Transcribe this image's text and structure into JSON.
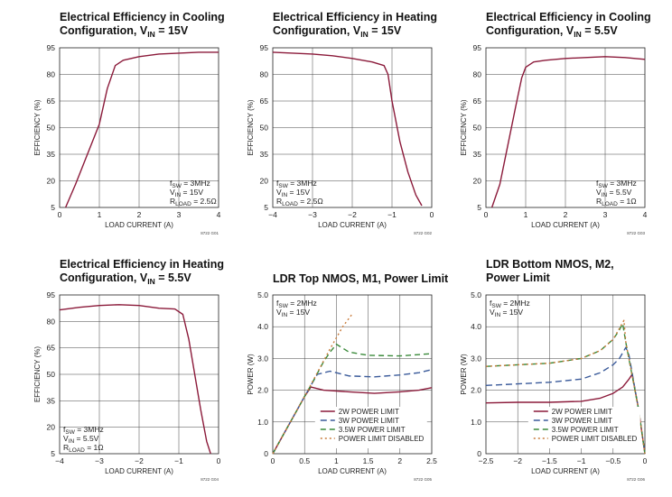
{
  "chart_data": [
    {
      "type": "line",
      "title_line1": "Electrical Efficiency in Cooling",
      "title_line2": "Configuration, V",
      "title_sub": "IN",
      "title_tail": " = 15V",
      "xlabel": "LOAD CURRENT (A)",
      "ylabel": "EFFICIENCY (%)",
      "xlim": [
        0,
        4
      ],
      "ylim": [
        5,
        95
      ],
      "xticks": [
        "0",
        "1",
        "2",
        "3",
        "4"
      ],
      "yticks": [
        "5",
        "20",
        "35",
        "50",
        "65",
        "80",
        "95"
      ],
      "grid": true,
      "annotation": [
        {
          "main": "f",
          "sub": "SW",
          "tail": " = 3MHz"
        },
        {
          "main": "V",
          "sub": "IN",
          "tail": " = 15V"
        },
        {
          "main": "R",
          "sub": "LOAD",
          "tail": " = 2.5Ω"
        }
      ],
      "annotation_pos": "bottom-right",
      "code": "8722 G01",
      "series": [
        {
          "color": "#8b1a3a",
          "dash": "",
          "x": [
            0.15,
            0.4,
            0.7,
            1.0,
            1.2,
            1.4,
            1.6,
            2.0,
            2.5,
            3.0,
            3.5,
            4.0
          ],
          "y": [
            5,
            18,
            35,
            52,
            72,
            85,
            88,
            90,
            91.5,
            92,
            92.5,
            92.5
          ]
        }
      ]
    },
    {
      "type": "line",
      "title_line1": "Electrical Efficiency in Heating",
      "title_line2": "Configuration, V",
      "title_sub": "IN",
      "title_tail": " = 15V",
      "xlabel": "LOAD CURRENT (A)",
      "ylabel": "EFFICIENCY (%)",
      "xlim": [
        -4,
        0
      ],
      "ylim": [
        5,
        95
      ],
      "xticks": [
        "−4",
        "−3",
        "−2",
        "−1",
        "0"
      ],
      "yticks": [
        "5",
        "20",
        "35",
        "50",
        "65",
        "80",
        "95"
      ],
      "grid": true,
      "annotation": [
        {
          "main": "f",
          "sub": "SW",
          "tail": " = 3MHz"
        },
        {
          "main": "V",
          "sub": "IN",
          "tail": " = 15V"
        },
        {
          "main": "R",
          "sub": "LOAD",
          "tail": " = 2.5Ω"
        }
      ],
      "annotation_pos": "bottom-left",
      "code": "8722 G02",
      "series": [
        {
          "color": "#8b1a3a",
          "dash": "",
          "x": [
            -4.0,
            -3.5,
            -3.0,
            -2.5,
            -2.0,
            -1.5,
            -1.2,
            -1.1,
            -1.0,
            -0.8,
            -0.6,
            -0.4,
            -0.25
          ],
          "y": [
            92.5,
            92,
            91.5,
            90.5,
            89,
            87,
            85,
            80,
            65,
            42,
            25,
            12,
            6
          ]
        }
      ]
    },
    {
      "type": "line",
      "title_line1": "Electrical Efficiency in Cooling",
      "title_line2": "Configuration, V",
      "title_sub": "IN",
      "title_tail": " = 5.5V",
      "xlabel": "LOAD CURRENT (A)",
      "ylabel": "EFFICIENCY (%)",
      "xlim": [
        0,
        4
      ],
      "ylim": [
        5,
        95
      ],
      "xticks": [
        "0",
        "1",
        "2",
        "3",
        "4"
      ],
      "yticks": [
        "5",
        "20",
        "35",
        "50",
        "65",
        "80",
        "95"
      ],
      "grid": true,
      "annotation": [
        {
          "main": "f",
          "sub": "SW",
          "tail": " = 3MHz"
        },
        {
          "main": "V",
          "sub": "IN",
          "tail": " = 5.5V"
        },
        {
          "main": "R",
          "sub": "LOAD",
          "tail": " = 1Ω"
        }
      ],
      "annotation_pos": "bottom-right",
      "code": "8722 G03",
      "series": [
        {
          "color": "#8b1a3a",
          "dash": "",
          "x": [
            0.15,
            0.35,
            0.55,
            0.75,
            0.9,
            1.0,
            1.2,
            1.5,
            2.0,
            2.5,
            3.0,
            3.5,
            4.0
          ],
          "y": [
            5,
            18,
            40,
            62,
            78,
            84,
            87,
            88,
            89,
            89.5,
            90,
            89.5,
            88.5
          ]
        }
      ]
    },
    {
      "type": "line",
      "title_line1": "Electrical Efficiency in Heating",
      "title_line2": "Configuration, V",
      "title_sub": "IN",
      "title_tail": " = 5.5V",
      "xlabel": "LOAD CURRENT (A)",
      "ylabel": "EFFICIENCY (%)",
      "xlim": [
        -4,
        0
      ],
      "ylim": [
        5,
        95
      ],
      "xticks": [
        "−4",
        "−3",
        "−2",
        "−1",
        "0"
      ],
      "yticks": [
        "5",
        "20",
        "35",
        "50",
        "65",
        "80",
        "95"
      ],
      "grid": true,
      "annotation": [
        {
          "main": "f",
          "sub": "SW",
          "tail": " = 3MHz"
        },
        {
          "main": "V",
          "sub": "IN",
          "tail": " = 5.5V"
        },
        {
          "main": "R",
          "sub": "LOAD",
          "tail": " = 1Ω"
        }
      ],
      "annotation_pos": "bottom-left",
      "code": "8722 G04",
      "series": [
        {
          "color": "#8b1a3a",
          "dash": "",
          "x": [
            -4.0,
            -3.5,
            -3.0,
            -2.5,
            -2.0,
            -1.5,
            -1.1,
            -0.9,
            -0.75,
            -0.6,
            -0.45,
            -0.3,
            -0.2
          ],
          "y": [
            86.5,
            88,
            89,
            89.5,
            89,
            87.5,
            87,
            84,
            70,
            50,
            30,
            12,
            5
          ]
        }
      ]
    },
    {
      "type": "line",
      "title_line1": "LDR Top NMOS, M1, Power Limit",
      "title_line2": "",
      "title_sub": "",
      "title_tail": "",
      "xlabel": "LOAD CURRENT (A)",
      "ylabel": "POWER (W)",
      "xlim": [
        0,
        2.5
      ],
      "ylim": [
        0,
        5
      ],
      "xticks": [
        "0",
        "0.5",
        "1",
        "1.5",
        "2",
        "2.5"
      ],
      "yticks": [
        "0",
        "1.0",
        "2.0",
        "3.0",
        "4.0",
        "5.0"
      ],
      "grid": true,
      "annotation": [
        {
          "main": "f",
          "sub": "SW",
          "tail": " = 2MHz"
        },
        {
          "main": "V",
          "sub": "IN",
          "tail": " = 15V"
        }
      ],
      "annotation_pos": "top-left",
      "code": "8722 G05",
      "legend": [
        "2W POWER LIMIT",
        "3W POWER LIMIT",
        "3.5W POWER LIMIT",
        "POWER LIMIT DISABLED"
      ],
      "legend_position": "bottom-center",
      "series": [
        {
          "name": "2W POWER LIMIT",
          "color": "#8b1a3a",
          "dash": "",
          "x": [
            0,
            0.5,
            0.6,
            0.8,
            1.2,
            1.6,
            2.0,
            2.3,
            2.5
          ],
          "y": [
            0,
            1.8,
            2.1,
            2.0,
            1.95,
            1.9,
            1.95,
            2.0,
            2.08
          ]
        },
        {
          "name": "3W POWER LIMIT",
          "color": "#3a5a9a",
          "dash": "7,4",
          "x": [
            0,
            0.5,
            0.6,
            0.7,
            0.9,
            1.2,
            1.6,
            2.0,
            2.3,
            2.5
          ],
          "y": [
            0,
            1.8,
            2.15,
            2.5,
            2.6,
            2.45,
            2.42,
            2.48,
            2.55,
            2.65
          ]
        },
        {
          "name": "3.5W POWER LIMIT",
          "color": "#3a8a3a",
          "dash": "6,4",
          "x": [
            0,
            0.5,
            0.6,
            0.8,
            0.9,
            1.0,
            1.2,
            1.5,
            2.0,
            2.5
          ],
          "y": [
            0,
            1.8,
            2.15,
            2.9,
            3.2,
            3.45,
            3.2,
            3.1,
            3.08,
            3.15
          ]
        },
        {
          "name": "POWER LIMIT DISABLED",
          "color": "#c87a3a",
          "dash": "2,3",
          "x": [
            0,
            0.5,
            0.7,
            0.9,
            1.1,
            1.25
          ],
          "y": [
            0,
            1.8,
            2.55,
            3.3,
            4.0,
            4.4
          ]
        }
      ]
    },
    {
      "type": "line",
      "title_line1": "LDR Bottom NMOS, M2,",
      "title_line2": "Power Limit",
      "title_sub": "",
      "title_tail": "",
      "xlabel": "LOAD CURRENT (A)",
      "ylabel": "POWER (W)",
      "xlim": [
        -2.5,
        0
      ],
      "ylim": [
        0,
        5
      ],
      "xticks": [
        "−2.5",
        "−2",
        "−1.5",
        "−1",
        "−0.5",
        "0"
      ],
      "yticks": [
        "0",
        "1.0",
        "2.0",
        "3.0",
        "4.0",
        "5.0"
      ],
      "grid": true,
      "annotation": [
        {
          "main": "f",
          "sub": "SW",
          "tail": " = 2MHz"
        },
        {
          "main": "V",
          "sub": "IN",
          "tail": " = 15V"
        }
      ],
      "annotation_pos": "top-left",
      "code": "8722 G06",
      "legend": [
        "2W POWER LIMIT",
        "3W POWER LIMIT",
        "3.5W POWER LIMIT",
        "POWER LIMIT DISABLED"
      ],
      "legend_position": "bottom-center",
      "series": [
        {
          "name": "2W POWER LIMIT",
          "color": "#8b1a3a",
          "dash": "",
          "x": [
            -2.5,
            -2.0,
            -1.5,
            -1.0,
            -0.7,
            -0.5,
            -0.35,
            -0.25,
            -0.2,
            -0.1,
            0
          ],
          "y": [
            1.6,
            1.62,
            1.62,
            1.65,
            1.75,
            1.9,
            2.1,
            2.35,
            2.5,
            1.4,
            0
          ]
        },
        {
          "name": "3W POWER LIMIT",
          "color": "#3a5a9a",
          "dash": "7,4",
          "x": [
            -2.5,
            -2.0,
            -1.5,
            -1.0,
            -0.7,
            -0.5,
            -0.4,
            -0.3,
            -0.25,
            -0.1,
            0
          ],
          "y": [
            2.15,
            2.2,
            2.25,
            2.35,
            2.55,
            2.8,
            3.0,
            3.35,
            3.1,
            1.4,
            0
          ]
        },
        {
          "name": "3.5W POWER LIMIT",
          "color": "#3a8a3a",
          "dash": "6,4",
          "x": [
            -2.5,
            -2.0,
            -1.5,
            -1.0,
            -0.7,
            -0.5,
            -0.4,
            -0.35,
            -0.3,
            -0.1,
            0
          ],
          "y": [
            2.75,
            2.8,
            2.85,
            3.0,
            3.25,
            3.6,
            3.9,
            4.1,
            3.5,
            1.4,
            0
          ]
        },
        {
          "name": "POWER LIMIT DISABLED",
          "color": "#c87a3a",
          "dash": "2,3",
          "x": [
            -2.5,
            -2.0,
            -1.5,
            -1.0,
            -0.7,
            -0.5,
            -0.4,
            -0.33,
            -0.3,
            -0.1,
            0
          ],
          "y": [
            2.75,
            2.8,
            2.85,
            3.0,
            3.25,
            3.6,
            3.95,
            4.2,
            3.5,
            1.4,
            0
          ]
        }
      ]
    }
  ]
}
